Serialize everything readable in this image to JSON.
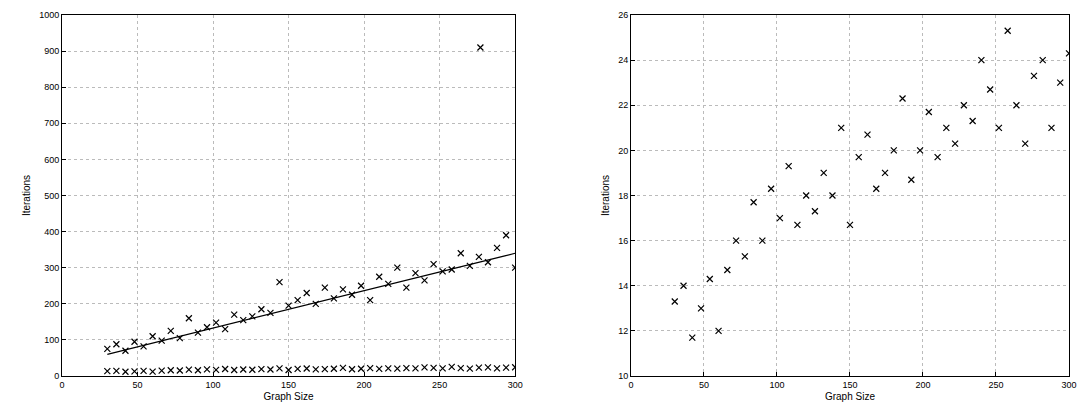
{
  "chart_data": [
    {
      "type": "scatter",
      "xlabel": "Graph Size",
      "ylabel": "Iterations",
      "xlim": [
        0,
        300
      ],
      "ylim": [
        0,
        1000
      ],
      "xticks": [
        0,
        50,
        100,
        150,
        200,
        250,
        300
      ],
      "yticks": [
        0,
        100,
        200,
        300,
        400,
        500,
        600,
        700,
        800,
        900,
        1000
      ],
      "grid": true,
      "series": [
        {
          "color": "#000000",
          "marker": "x",
          "x": [
            30,
            36,
            42,
            48,
            54,
            60,
            66,
            72,
            78,
            84,
            90,
            96,
            102,
            108,
            114,
            120,
            126,
            132,
            138,
            144,
            150,
            156,
            162,
            168,
            174,
            180,
            186,
            192,
            198,
            204,
            210,
            216,
            222,
            228,
            234,
            240,
            246,
            252,
            258,
            264,
            270,
            276,
            282,
            288,
            294,
            300,
            277
          ],
          "values": [
            75,
            88,
            70,
            95,
            82,
            110,
            98,
            125,
            105,
            160,
            120,
            135,
            148,
            130,
            170,
            155,
            165,
            185,
            175,
            260,
            195,
            210,
            230,
            200,
            245,
            215,
            240,
            225,
            250,
            210,
            275,
            255,
            300,
            245,
            285,
            265,
            310,
            290,
            295,
            340,
            305,
            330,
            315,
            355,
            390,
            300,
            910
          ]
        },
        {
          "color": "#000000",
          "marker": "x",
          "x": [
            30,
            36,
            42,
            48,
            54,
            60,
            66,
            72,
            78,
            84,
            90,
            96,
            102,
            108,
            114,
            120,
            126,
            132,
            138,
            144,
            150,
            156,
            162,
            168,
            174,
            180,
            186,
            192,
            198,
            204,
            210,
            216,
            222,
            228,
            234,
            240,
            246,
            252,
            258,
            264,
            270,
            276,
            282,
            288,
            294,
            300
          ],
          "values": [
            13.3,
            14,
            11.7,
            13,
            14.3,
            12,
            14.7,
            16,
            15.3,
            17.7,
            16,
            18.3,
            17,
            19.3,
            16.7,
            18,
            17.3,
            19,
            18,
            21,
            16.7,
            19.7,
            20.7,
            18.3,
            19,
            20,
            22.3,
            18.7,
            20,
            21.7,
            19.7,
            21,
            20.3,
            22,
            21.3,
            24,
            22.7,
            21,
            25.3,
            22,
            20.3,
            23.3,
            24,
            21,
            23,
            24.3
          ]
        },
        {
          "type": "line",
          "color": "#000000",
          "line_style": "solid",
          "x": [
            30,
            300
          ],
          "values": [
            60,
            340
          ]
        }
      ]
    },
    {
      "type": "scatter",
      "xlabel": "Graph Size",
      "ylabel": "Iterations",
      "xlim": [
        0,
        300
      ],
      "ylim": [
        10,
        26
      ],
      "xticks": [
        0,
        50,
        100,
        150,
        200,
        250,
        300
      ],
      "yticks": [
        10,
        12,
        14,
        16,
        18,
        20,
        22,
        24,
        26
      ],
      "grid": true,
      "series": [
        {
          "color": "#000000",
          "marker": "x",
          "x": [
            30,
            36,
            42,
            48,
            54,
            60,
            66,
            72,
            78,
            84,
            90,
            96,
            102,
            108,
            114,
            120,
            126,
            132,
            138,
            144,
            150,
            156,
            162,
            168,
            174,
            180,
            186,
            192,
            198,
            204,
            210,
            216,
            222,
            228,
            234,
            240,
            246,
            252,
            258,
            264,
            270,
            276,
            282,
            288,
            294,
            300
          ],
          "values": [
            13.3,
            14,
            11.7,
            13,
            14.3,
            12,
            14.7,
            16,
            15.3,
            17.7,
            16,
            18.3,
            17,
            19.3,
            16.7,
            18,
            17.3,
            19,
            18,
            21,
            16.7,
            19.7,
            20.7,
            18.3,
            19,
            20,
            22.3,
            18.7,
            20,
            21.7,
            19.7,
            21,
            20.3,
            22,
            21.3,
            24,
            22.7,
            21,
            25.3,
            22,
            20.3,
            23.3,
            24,
            21,
            23,
            24.3
          ]
        }
      ]
    }
  ]
}
